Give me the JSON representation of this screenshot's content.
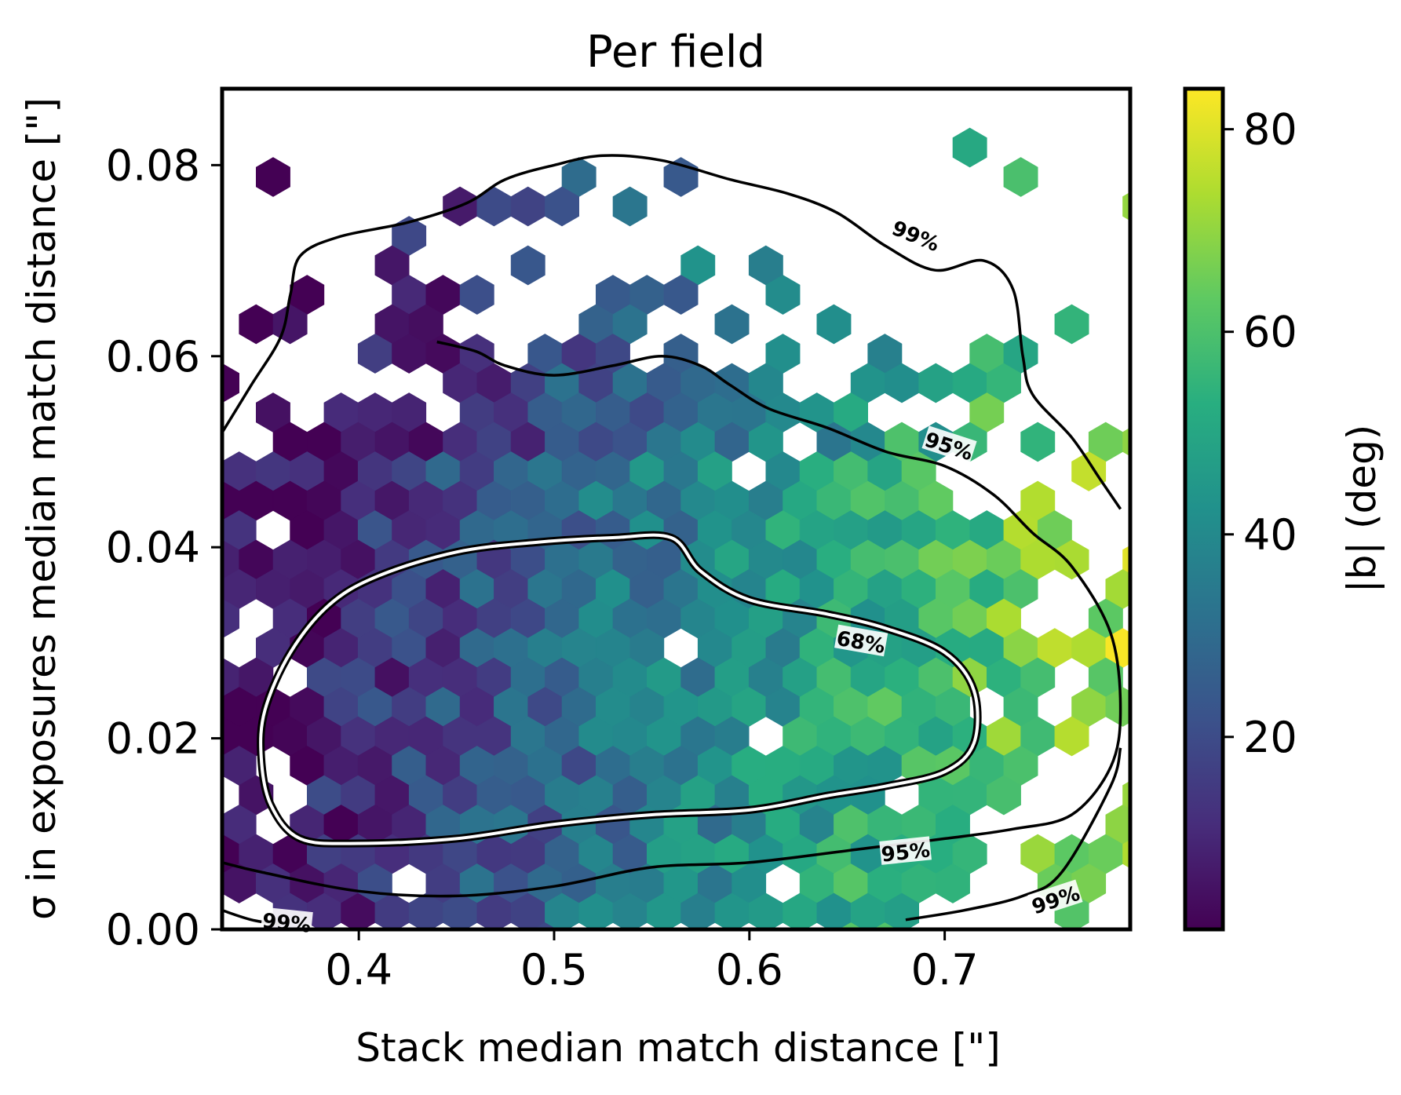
{
  "chart_data": {
    "type": "heatmap",
    "subtype": "hexbin",
    "title": "Per field",
    "xlabel": "Stack median match distance [\"]",
    "ylabel": "σ in exposures median match distance [\"]",
    "xlim": [
      0.33,
      0.795
    ],
    "ylim": [
      0.0,
      0.088
    ],
    "xticks": [
      0.4,
      0.5,
      0.6,
      0.7
    ],
    "xtick_labels": [
      "0.4",
      "0.5",
      "0.6",
      "0.7"
    ],
    "yticks": [
      0.0,
      0.02,
      0.04,
      0.06,
      0.08
    ],
    "ytick_labels": [
      "0.00",
      "0.02",
      "0.04",
      "0.06",
      "0.08"
    ],
    "colorbar": {
      "label": "|b| (deg)",
      "colormap": "viridis",
      "range": [
        1,
        84
      ],
      "ticks": [
        20,
        40,
        60,
        80
      ],
      "tick_labels": [
        "20",
        "40",
        "60",
        "80"
      ]
    },
    "color_trend": "|b| increases with stack median match distance: ~10 deg near x=0.40 to ~70 deg near x=0.75",
    "contours": [
      {
        "label": "68%",
        "style": "black-with-white-halo",
        "points": [
          [
            0.53,
            0.041
          ],
          [
            0.56,
            0.041
          ],
          [
            0.575,
            0.0375
          ],
          [
            0.6,
            0.0345
          ],
          [
            0.64,
            0.033
          ],
          [
            0.67,
            0.0315
          ],
          [
            0.7,
            0.029
          ],
          [
            0.715,
            0.025
          ],
          [
            0.715,
            0.0195
          ],
          [
            0.7,
            0.0165
          ],
          [
            0.67,
            0.015
          ],
          [
            0.64,
            0.014
          ],
          [
            0.6,
            0.0125
          ],
          [
            0.55,
            0.012
          ],
          [
            0.5,
            0.011
          ],
          [
            0.45,
            0.0095
          ],
          [
            0.4,
            0.009
          ],
          [
            0.37,
            0.0095
          ],
          [
            0.355,
            0.013
          ],
          [
            0.35,
            0.018
          ],
          [
            0.352,
            0.023
          ],
          [
            0.365,
            0.029
          ],
          [
            0.385,
            0.034
          ],
          [
            0.41,
            0.037
          ],
          [
            0.45,
            0.0395
          ],
          [
            0.49,
            0.0405
          ]
        ]
      },
      {
        "label": "95%",
        "style": "black",
        "points": [
          [
            0.44,
            0.0615
          ],
          [
            0.46,
            0.0605
          ],
          [
            0.475,
            0.059
          ],
          [
            0.5,
            0.058
          ],
          [
            0.53,
            0.059
          ],
          [
            0.555,
            0.06
          ],
          [
            0.575,
            0.059
          ],
          [
            0.59,
            0.057
          ],
          [
            0.61,
            0.0545
          ],
          [
            0.64,
            0.0525
          ],
          [
            0.67,
            0.05
          ],
          [
            0.7,
            0.0485
          ],
          [
            0.725,
            0.0455
          ],
          [
            0.745,
            0.0415
          ],
          [
            0.765,
            0.038
          ],
          [
            0.785,
            0.031
          ],
          [
            0.79,
            0.023
          ],
          [
            0.785,
            0.017
          ],
          [
            0.765,
            0.012
          ],
          [
            0.735,
            0.0105
          ],
          [
            0.7,
            0.0095
          ],
          [
            0.66,
            0.0085
          ],
          [
            0.6,
            0.007
          ],
          [
            0.55,
            0.0065
          ],
          [
            0.5,
            0.0045
          ],
          [
            0.45,
            0.0035
          ],
          [
            0.4,
            0.004
          ],
          [
            0.35,
            0.006
          ],
          [
            0.33,
            0.007
          ]
        ]
      },
      {
        "label": "99%",
        "style": "black",
        "points": [
          [
            0.33,
            0.052
          ],
          [
            0.345,
            0.057
          ],
          [
            0.36,
            0.062
          ],
          [
            0.365,
            0.0665
          ],
          [
            0.37,
            0.0705
          ],
          [
            0.39,
            0.0725
          ],
          [
            0.425,
            0.074
          ],
          [
            0.455,
            0.076
          ],
          [
            0.475,
            0.0785
          ],
          [
            0.5,
            0.08
          ],
          [
            0.525,
            0.081
          ],
          [
            0.555,
            0.0805
          ],
          [
            0.59,
            0.0785
          ],
          [
            0.62,
            0.077
          ],
          [
            0.645,
            0.075
          ],
          [
            0.67,
            0.0715
          ],
          [
            0.695,
            0.069
          ],
          [
            0.72,
            0.07
          ],
          [
            0.735,
            0.067
          ],
          [
            0.74,
            0.06
          ],
          [
            0.745,
            0.056
          ],
          [
            0.765,
            0.0515
          ],
          [
            0.78,
            0.047
          ],
          [
            0.79,
            0.044
          ]
        ],
        "extra_segments": [
          [
            [
              0.33,
              0.002
            ],
            [
              0.345,
              0.001
            ],
            [
              0.36,
              0.0005
            ]
          ],
          [
            [
              0.68,
              0.001
            ],
            [
              0.71,
              0.002
            ],
            [
              0.74,
              0.0035
            ],
            [
              0.76,
              0.006
            ],
            [
              0.785,
              0.015
            ],
            [
              0.79,
              0.019
            ]
          ]
        ]
      }
    ],
    "contour_labels": [
      {
        "text": "99%",
        "x": 0.685,
        "y": 0.0725
      },
      {
        "text": "95%",
        "x": 0.702,
        "y": 0.0505
      },
      {
        "text": "68%",
        "x": 0.657,
        "y": 0.03
      },
      {
        "text": "95%",
        "x": 0.68,
        "y": 0.008
      },
      {
        "text": "99%",
        "x": 0.757,
        "y": 0.003
      },
      {
        "text": "99%",
        "x": 0.363,
        "y": 0.0006
      }
    ]
  }
}
